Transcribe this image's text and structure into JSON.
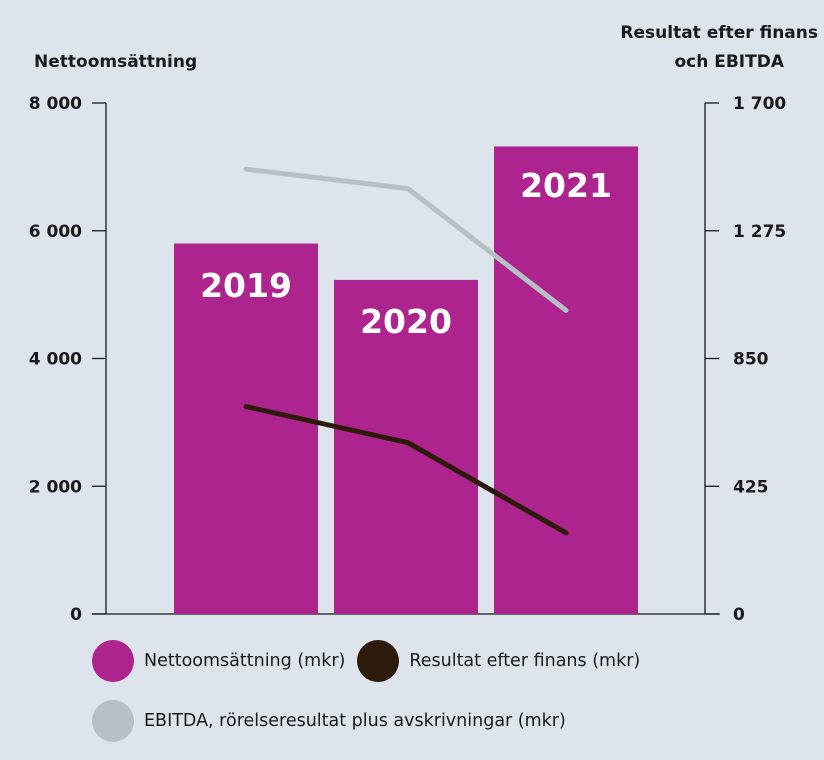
{
  "chart_data": {
    "type": "bar",
    "categories": [
      "2019",
      "2020",
      "2021"
    ],
    "left_axis": {
      "title": "Nettoomsättning",
      "ylim": [
        0,
        8000
      ],
      "ticks": [
        "0",
        "2 000",
        "4 000",
        "6 000",
        "8 000"
      ]
    },
    "right_axis": {
      "title_line1": "Resultat efter finans",
      "title_line2": "och EBITDA",
      "ylim": [
        0,
        1700
      ],
      "ticks": [
        "0",
        "425",
        "850",
        "1 275",
        "1 700"
      ]
    },
    "series": [
      {
        "name": "Nettoomsättning (mkr)",
        "type": "bar",
        "axis": "left",
        "color": "#ad248f",
        "values": [
          5800,
          5230,
          7320
        ]
      },
      {
        "name": "Resultat efter finans (mkr)",
        "type": "line",
        "axis": "right",
        "color": "#2d1a0b",
        "values": [
          690,
          570,
          270
        ]
      },
      {
        "name": "EBITDA, rörelseresultat plus avskrivningar (mkr)",
        "type": "line",
        "axis": "right",
        "color": "#b7c0c5",
        "values": [
          1480,
          1415,
          1010
        ]
      }
    ],
    "grid": false,
    "legend_position": "bottom"
  }
}
